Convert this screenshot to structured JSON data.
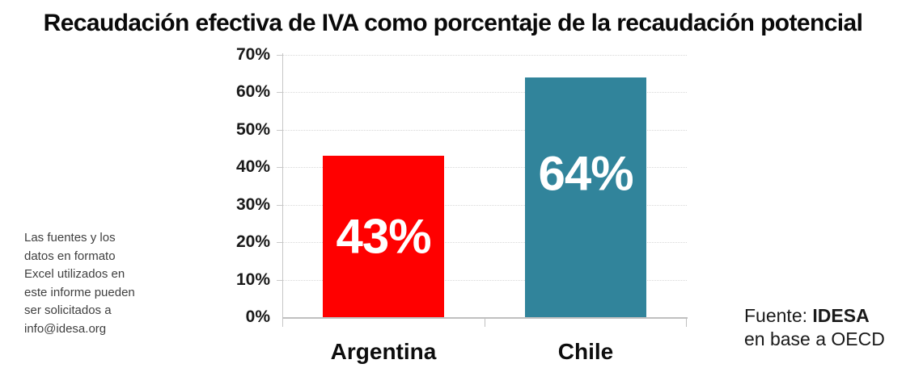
{
  "title": "Recaudación efectiva de IVA como porcentaje de la recaudación potencial",
  "side_note": {
    "lines": [
      "Las fuentes y los",
      "datos en formato",
      "Excel utilizados en",
      "este informe pueden",
      "ser solicitados a",
      "info@idesa.org"
    ]
  },
  "source": {
    "prefix": "Fuente: ",
    "org": "IDESA",
    "line2": "en base a OECD"
  },
  "chart_data": {
    "type": "bar",
    "title": "Recaudación efectiva de IVA como porcentaje de la recaudación potencial",
    "categories": [
      "Argentina",
      "Chile"
    ],
    "values": [
      43,
      64
    ],
    "data_labels": [
      "43%",
      "64%"
    ],
    "bar_colors": [
      "#ff0000",
      "#31849b"
    ],
    "data_label_color": "#ffffff",
    "ylim": [
      0,
      70
    ],
    "yticks": [
      0,
      10,
      20,
      30,
      40,
      50,
      60,
      70
    ],
    "ytick_labels": [
      "0%",
      "10%",
      "20%",
      "30%",
      "40%",
      "50%",
      "60%",
      "70%"
    ],
    "xlabel": "",
    "ylabel": "",
    "grid": "horizontal-dotted",
    "legend": "none"
  }
}
